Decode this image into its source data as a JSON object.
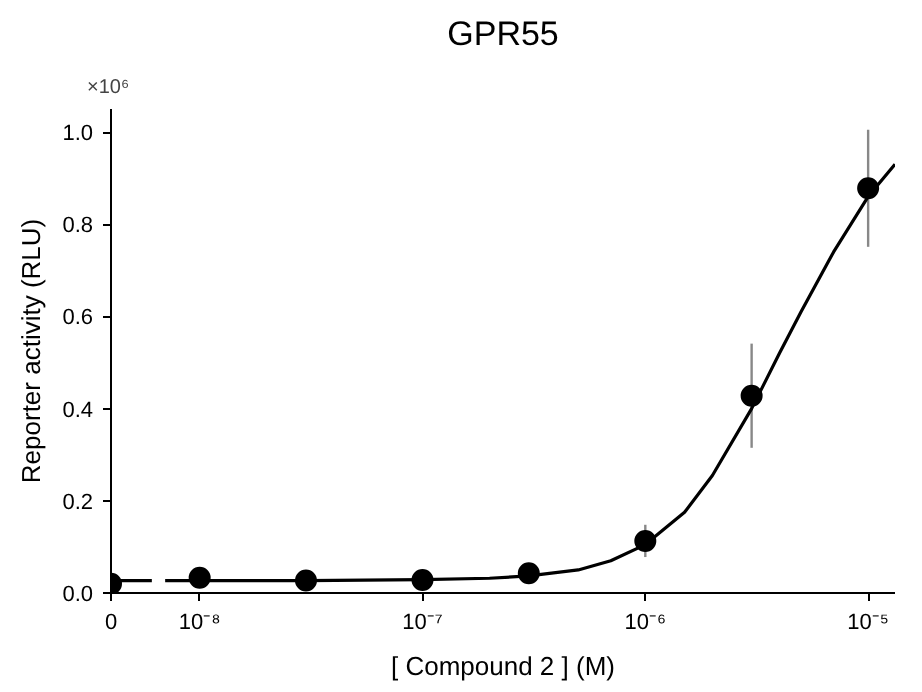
{
  "chart_data": {
    "type": "scatter",
    "title": "GPR55",
    "xlabel": "[ Compound 2 ] (M)",
    "ylabel": "Reporter activity (RLU)",
    "annotations": [
      "×10⁶"
    ],
    "log": "x",
    "xlim": [
      4e-09,
      1.32e-05
    ],
    "ylim": [
      0,
      1.05
    ],
    "xticks": [
      {
        "value": 4e-09,
        "label": "0"
      },
      {
        "value": 1e-08,
        "label": "10⁻⁸"
      },
      {
        "value": 1e-07,
        "label": "10⁻⁷"
      },
      {
        "value": 1e-06,
        "label": "10⁻⁶"
      },
      {
        "value": 1e-05,
        "label": "10⁻⁵"
      }
    ],
    "yticks": [
      {
        "value": 0,
        "label": "0.0"
      },
      {
        "value": 0.2,
        "label": "0.2"
      },
      {
        "value": 0.4,
        "label": "0.4"
      },
      {
        "value": 0.6,
        "label": "0.6"
      },
      {
        "value": 0.8,
        "label": "0.8"
      },
      {
        "value": 1,
        "label": "1.0"
      }
    ],
    "grid": false,
    "series": [
      {
        "type": "line",
        "color": "#000000",
        "marker": "none",
        "x": [
          4e-09,
          6.1e-09,
          6.5e-09,
          7e-09,
          1e-08,
          3e-08,
          1e-07,
          2e-07,
          3e-07,
          5e-07,
          7e-07,
          1e-06,
          1.5e-06,
          2e-06,
          3e-06,
          4e-06,
          5e-06,
          7e-06,
          1e-05,
          1.32e-05
        ],
        "values": [
          0.027,
          0.027,
          null,
          0.027,
          0.027,
          0.027,
          0.029,
          0.032,
          0.037,
          0.05,
          0.07,
          0.105,
          0.175,
          0.255,
          0.4,
          0.52,
          0.61,
          0.74,
          0.86,
          0.93
        ]
      },
      {
        "color": "#000000",
        "marker": "circle",
        "x": [
          4e-09,
          1e-08,
          3e-08,
          1e-07,
          3e-07,
          1e-06,
          3e-06,
          1e-05
        ],
        "values": [
          0.02,
          0.033,
          0.027,
          0.028,
          0.043,
          0.113,
          0.428,
          0.878
        ],
        "errors": [
          null,
          null,
          null,
          null,
          0.022,
          0.035,
          0.113,
          0.127
        ]
      }
    ]
  }
}
